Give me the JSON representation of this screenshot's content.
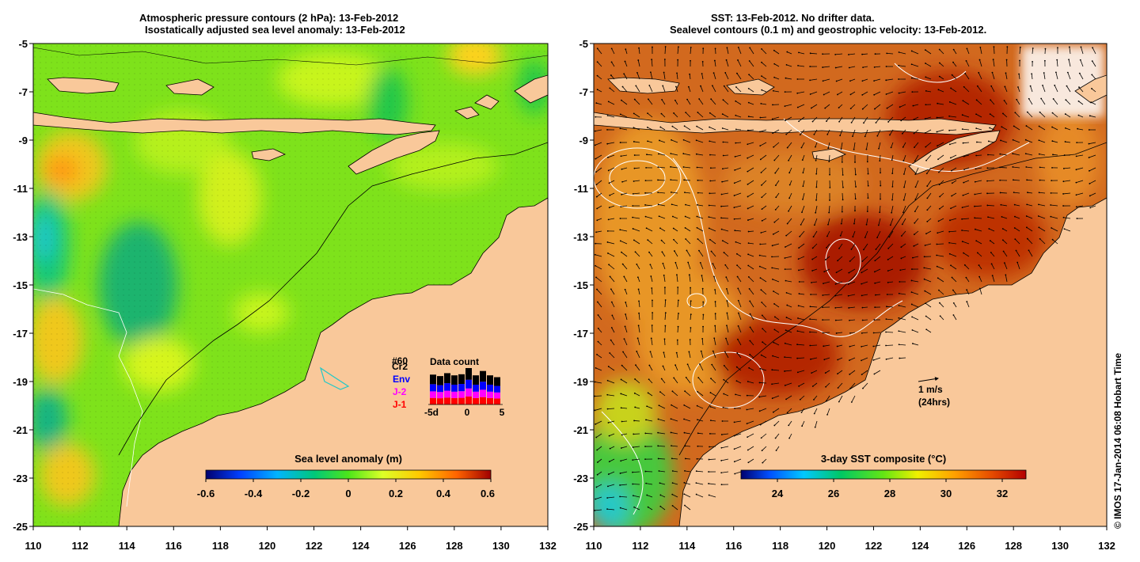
{
  "left_panel": {
    "title_line1": "Atmospheric pressure contours (2 hPa): 13-Feb-2012",
    "title_line2": "Isostatically adjusted sea level anomaly: 13-Feb-2012",
    "colorbar_label": "Sea level anomaly (m)",
    "colorbar_ticks": [
      "-0.6",
      "-0.4",
      "-0.2",
      "0",
      "0.2",
      "0.4",
      "0.6"
    ],
    "legend": {
      "title": "Data count",
      "overlap_labels": [
        "#60",
        "Cr2"
      ],
      "labels": [
        "Env",
        "J-2",
        "J-1"
      ],
      "label_colors": [
        "#0000ff",
        "#ff00ff",
        "#ff0000"
      ],
      "axis_ticks": [
        "-5d",
        "0",
        "5"
      ],
      "bar_heights": [
        0.82,
        0.78,
        0.86,
        0.8,
        0.83,
        1.0,
        0.8,
        0.92,
        0.8,
        0.75
      ]
    }
  },
  "right_panel": {
    "title_line1": "SST: 13-Feb-2012. No drifter data.",
    "title_line2": "Sealevel contours (0.1 m) and geostrophic velocity: 13-Feb-2012.",
    "colorbar_label": "3-day SST composite (°C)",
    "colorbar_ticks": [
      "24",
      "26",
      "28",
      "30",
      "32"
    ],
    "vector_label_1": "1 m/s",
    "vector_label_2": "(24hrs)"
  },
  "axes": {
    "x_ticks": [
      "110",
      "112",
      "114",
      "116",
      "118",
      "120",
      "122",
      "124",
      "126",
      "128",
      "130",
      "132"
    ],
    "y_ticks": [
      "-5",
      "-7",
      "-9",
      "-11",
      "-13",
      "-15",
      "-17",
      "-19",
      "-21",
      "-23",
      "-25"
    ]
  },
  "credit": "© IMOS 17-Jan-2014 06:08 Hobart Time",
  "colors": {
    "land": "#f9c89a",
    "sla_base": "#7ee21b",
    "sst_base": "#d2691e"
  }
}
